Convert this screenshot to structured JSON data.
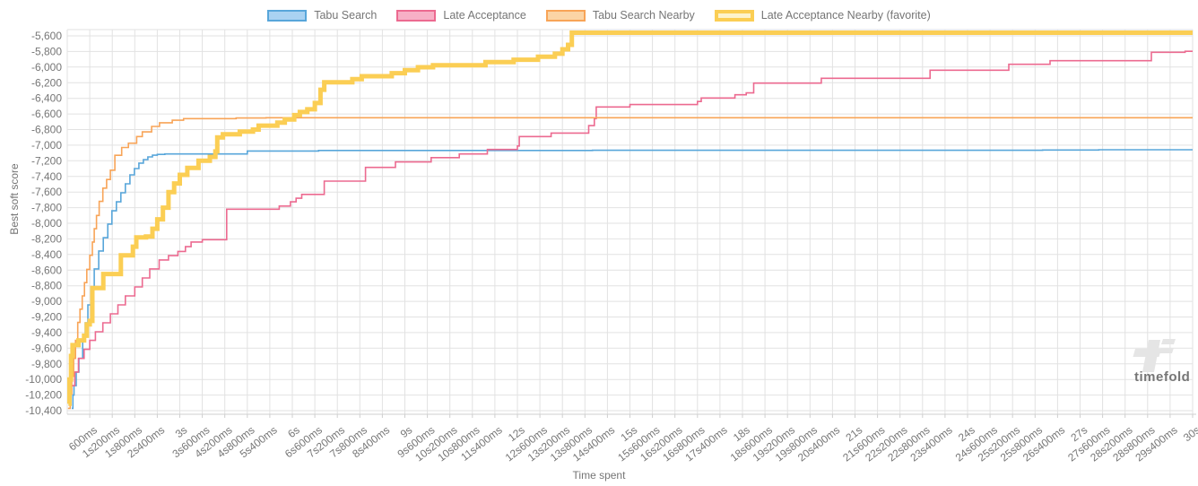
{
  "watermark": {
    "text": "timefold"
  },
  "chart_data": {
    "type": "line",
    "step": true,
    "title": "",
    "xlabel": "Time spent",
    "ylabel": "Best soft score",
    "x_unit": "seconds",
    "xlim": [
      0,
      30
    ],
    "ylim": [
      -10400,
      -5520
    ],
    "grid": true,
    "legend_position": "top",
    "grid_color": "#e2e2e2",
    "axis_line_color": "#cfcfcf",
    "label_color": "#767676",
    "x_tick_seconds": [
      0.6,
      1.2,
      1.8,
      2.4,
      3,
      3.6,
      4.2,
      4.8,
      5.4,
      6,
      6.6,
      7.2,
      7.8,
      8.4,
      9,
      9.6,
      10.2,
      10.8,
      11.4,
      12,
      12.6,
      13.2,
      13.8,
      14.4,
      15,
      15.6,
      16.2,
      16.8,
      17.4,
      18,
      18.6,
      19.2,
      19.8,
      20.4,
      21,
      21.6,
      22.2,
      22.8,
      23.4,
      24,
      24.6,
      25.2,
      25.8,
      26.4,
      27,
      27.6,
      28.2,
      28.8,
      29.4,
      30
    ],
    "x_tick_labels": [
      "600ms",
      "1s200ms",
      "1s800ms",
      "2s400ms",
      "3s",
      "3s600ms",
      "4s200ms",
      "4s800ms",
      "5s400ms",
      "6s",
      "6s600ms",
      "7s200ms",
      "7s800ms",
      "8s400ms",
      "9s",
      "9s600ms",
      "10s200ms",
      "10s800ms",
      "11s400ms",
      "12s",
      "12s600ms",
      "13s200ms",
      "13s800ms",
      "14s400ms",
      "15s",
      "15s600ms",
      "16s200ms",
      "16s800ms",
      "17s400ms",
      "18s",
      "18s600ms",
      "19s200ms",
      "19s800ms",
      "20s400ms",
      "21s",
      "21s600ms",
      "22s200ms",
      "22s800ms",
      "23s400ms",
      "24s",
      "24s600ms",
      "25s200ms",
      "25s800ms",
      "26s400ms",
      "27s",
      "27s600ms",
      "28s200ms",
      "28s800ms",
      "29s400ms",
      "30s"
    ],
    "y_tick_values": [
      -5600,
      -5800,
      -6000,
      -6200,
      -6400,
      -6600,
      -6800,
      -7000,
      -7200,
      -7400,
      -7600,
      -7800,
      -8000,
      -8200,
      -8400,
      -8600,
      -8800,
      -9000,
      -9200,
      -9400,
      -9600,
      -9800,
      -10000,
      -10200,
      -10400
    ],
    "y_tick_labels": [
      "-5,600",
      "-5,800",
      "-6,000",
      "-6,200",
      "-6,400",
      "-6,600",
      "-6,800",
      "-7,000",
      "-7,200",
      "-7,400",
      "-7,600",
      "-7,800",
      "-8,000",
      "-8,200",
      "-8,400",
      "-8,600",
      "-8,800",
      "-9,000",
      "-9,200",
      "-9,400",
      "-9,600",
      "-9,800",
      "-10,000",
      "-10,200",
      "-10,400"
    ],
    "series": [
      {
        "name": "Tabu Search",
        "line_color": "#58a6da",
        "legend_fill": "#a9d2f2",
        "swatch_border_px": 2,
        "width": 1.6,
        "points": [
          [
            0.12,
            -10370
          ],
          [
            0.15,
            -10200
          ],
          [
            0.18,
            -10080
          ],
          [
            0.24,
            -9905
          ],
          [
            0.31,
            -9730
          ],
          [
            0.41,
            -9500
          ],
          [
            0.48,
            -9275
          ],
          [
            0.55,
            -9045
          ],
          [
            0.65,
            -8815
          ],
          [
            0.72,
            -8585
          ],
          [
            0.84,
            -8355
          ],
          [
            0.96,
            -8185
          ],
          [
            1.08,
            -8010
          ],
          [
            1.19,
            -7840
          ],
          [
            1.31,
            -7725
          ],
          [
            1.43,
            -7610
          ],
          [
            1.55,
            -7495
          ],
          [
            1.67,
            -7380
          ],
          [
            1.79,
            -7300
          ],
          [
            1.91,
            -7230
          ],
          [
            2.03,
            -7185
          ],
          [
            2.15,
            -7150
          ],
          [
            2.27,
            -7128
          ],
          [
            2.4,
            -7118
          ],
          [
            2.6,
            -7112
          ],
          [
            4.8,
            -7075
          ],
          [
            6.7,
            -7068
          ],
          [
            14,
            -7065
          ],
          [
            26,
            -7062
          ],
          [
            27.5,
            -7058
          ],
          [
            30,
            -7058
          ]
        ]
      },
      {
        "name": "Late Acceptance",
        "line_color": "#ec6a90",
        "legend_fill": "#f7b0c6",
        "swatch_border_px": 2,
        "width": 1.6,
        "points": [
          [
            0.05,
            -10310
          ],
          [
            0.1,
            -10080
          ],
          [
            0.2,
            -9905
          ],
          [
            0.3,
            -9730
          ],
          [
            0.45,
            -9615
          ],
          [
            0.6,
            -9500
          ],
          [
            0.75,
            -9390
          ],
          [
            0.95,
            -9275
          ],
          [
            1.15,
            -9160
          ],
          [
            1.35,
            -9045
          ],
          [
            1.55,
            -8930
          ],
          [
            1.8,
            -8815
          ],
          [
            2,
            -8700
          ],
          [
            2.2,
            -8585
          ],
          [
            2.45,
            -8470
          ],
          [
            2.7,
            -8415
          ],
          [
            2.95,
            -8360
          ],
          [
            3.15,
            -8300
          ],
          [
            3.3,
            -8240
          ],
          [
            3.6,
            -8210
          ],
          [
            4.25,
            -7820
          ],
          [
            5.65,
            -7780
          ],
          [
            5.95,
            -7725
          ],
          [
            6.1,
            -7680
          ],
          [
            6.25,
            -7630
          ],
          [
            6.85,
            -7460
          ],
          [
            7.95,
            -7285
          ],
          [
            8.75,
            -7215
          ],
          [
            9.7,
            -7160
          ],
          [
            10.45,
            -7112
          ],
          [
            11.2,
            -7055
          ],
          [
            12,
            -7010
          ],
          [
            12.05,
            -6890
          ],
          [
            12.9,
            -6845
          ],
          [
            13.9,
            -6750
          ],
          [
            14.05,
            -6660
          ],
          [
            14.1,
            -6511
          ],
          [
            15,
            -6480
          ],
          [
            16.8,
            -6440
          ],
          [
            16.9,
            -6396
          ],
          [
            17.8,
            -6354
          ],
          [
            18.1,
            -6330
          ],
          [
            18.3,
            -6205
          ],
          [
            20.1,
            -6143
          ],
          [
            23,
            -6040
          ],
          [
            25.1,
            -5964
          ],
          [
            26.2,
            -5918
          ],
          [
            28.9,
            -5810
          ],
          [
            29.8,
            -5798
          ],
          [
            30,
            -5798
          ]
        ]
      },
      {
        "name": "Tabu Search Nearby",
        "line_color": "#f8a457",
        "legend_fill": "#fbd4a5",
        "swatch_border_px": 2,
        "width": 1.6,
        "points": [
          [
            0.02,
            -10370
          ],
          [
            0.08,
            -10190
          ],
          [
            0.12,
            -9960
          ],
          [
            0.17,
            -9730
          ],
          [
            0.22,
            -9500
          ],
          [
            0.28,
            -9270
          ],
          [
            0.34,
            -9100
          ],
          [
            0.4,
            -8930
          ],
          [
            0.46,
            -8760
          ],
          [
            0.52,
            -8590
          ],
          [
            0.6,
            -8410
          ],
          [
            0.67,
            -8240
          ],
          [
            0.72,
            -8070
          ],
          [
            0.78,
            -7900
          ],
          [
            0.85,
            -7720
          ],
          [
            0.95,
            -7550
          ],
          [
            1.05,
            -7440
          ],
          [
            1.15,
            -7320
          ],
          [
            1.27,
            -7130
          ],
          [
            1.45,
            -7030
          ],
          [
            1.63,
            -6975
          ],
          [
            1.85,
            -6890
          ],
          [
            2,
            -6830
          ],
          [
            2.25,
            -6760
          ],
          [
            2.46,
            -6713
          ],
          [
            2.8,
            -6680
          ],
          [
            3.1,
            -6660
          ],
          [
            4.5,
            -6652
          ],
          [
            5.3,
            -6648
          ],
          [
            30,
            -6648
          ]
        ]
      },
      {
        "name": "Late Acceptance Nearby (favorite)",
        "line_color": "#fbce54",
        "legend_fill": "#fdf3cc",
        "swatch_border_px": 4,
        "width": 5,
        "points": [
          [
            0.03,
            -10310
          ],
          [
            0.06,
            -10000
          ],
          [
            0.1,
            -9700
          ],
          [
            0.14,
            -9560
          ],
          [
            0.3,
            -9500
          ],
          [
            0.45,
            -9440
          ],
          [
            0.52,
            -9295
          ],
          [
            0.6,
            -9250
          ],
          [
            0.67,
            -8830
          ],
          [
            0.96,
            -8650
          ],
          [
            1.43,
            -8410
          ],
          [
            1.75,
            -8300
          ],
          [
            1.84,
            -8180
          ],
          [
            2.1,
            -8170
          ],
          [
            2.27,
            -8070
          ],
          [
            2.4,
            -7950
          ],
          [
            2.55,
            -7800
          ],
          [
            2.7,
            -7600
          ],
          [
            2.85,
            -7490
          ],
          [
            3,
            -7380
          ],
          [
            3.2,
            -7290
          ],
          [
            3.5,
            -7200
          ],
          [
            3.8,
            -7150
          ],
          [
            3.95,
            -7080
          ],
          [
            4,
            -6900
          ],
          [
            4.15,
            -6860
          ],
          [
            4.6,
            -6825
          ],
          [
            4.95,
            -6800
          ],
          [
            5.1,
            -6750
          ],
          [
            5.6,
            -6710
          ],
          [
            5.8,
            -6670
          ],
          [
            6.05,
            -6615
          ],
          [
            6.2,
            -6575
          ],
          [
            6.4,
            -6540
          ],
          [
            6.6,
            -6460
          ],
          [
            6.75,
            -6290
          ],
          [
            6.85,
            -6195
          ],
          [
            7.6,
            -6155
          ],
          [
            7.85,
            -6117
          ],
          [
            8.65,
            -6078
          ],
          [
            9,
            -6040
          ],
          [
            9.35,
            -6002
          ],
          [
            9.75,
            -5975
          ],
          [
            11.15,
            -5936
          ],
          [
            11.9,
            -5906
          ],
          [
            12.55,
            -5867
          ],
          [
            13,
            -5829
          ],
          [
            13.2,
            -5772
          ],
          [
            13.35,
            -5715
          ],
          [
            13.45,
            -5560
          ],
          [
            30,
            -5560
          ]
        ]
      }
    ]
  }
}
